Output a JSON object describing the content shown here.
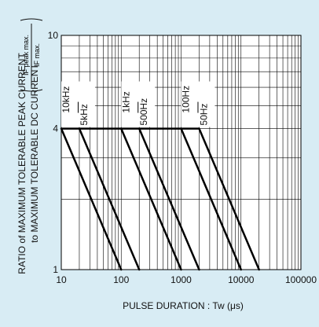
{
  "chart_data": {
    "type": "line",
    "xlabel": "PULSE DURATION : Tw (μs)",
    "ylabel_line1": "RATIO of MAXIMUM TOLERABLE PEAK CURRENT",
    "ylabel_line2": "to MAXIMUM TOLERABLE DC CURRENT",
    "ylabel_fraction": {
      "numerator": "IF peak max.",
      "denominator": "IF max."
    },
    "x_scale": "log",
    "y_scale": "log",
    "xlim": [
      10,
      100000
    ],
    "ylim": [
      1,
      10
    ],
    "x_tick_labels": [
      {
        "value": 10,
        "label": "10"
      },
      {
        "value": 100,
        "label": "100"
      },
      {
        "value": 1000,
        "label": "1000"
      },
      {
        "value": 10000,
        "label": "10000"
      },
      {
        "value": 100000,
        "label": "100000"
      }
    ],
    "y_tick_labels": [
      {
        "value": 1,
        "label": "1"
      },
      {
        "value": 4,
        "label": "4"
      },
      {
        "value": 10,
        "label": "10"
      }
    ],
    "grid": true,
    "series": [
      {
        "name": "10kHz",
        "x": [
          10,
          100
        ],
        "y": [
          4,
          1
        ]
      },
      {
        "name": "5kHz",
        "x": [
          20,
          200
        ],
        "y": [
          4,
          1
        ]
      },
      {
        "name": "1kHz",
        "x": [
          100,
          1000
        ],
        "y": [
          4,
          1
        ]
      },
      {
        "name": "500Hz",
        "x": [
          200,
          2000
        ],
        "y": [
          4,
          1
        ]
      },
      {
        "name": "100Hz",
        "x": [
          1000,
          10000
        ],
        "y": [
          4,
          1
        ]
      },
      {
        "name": "50Hz",
        "x": [
          2000,
          20000
        ],
        "y": [
          4,
          1
        ]
      }
    ],
    "plateau": {
      "y": 4,
      "x_start": 10,
      "x_end": 2000
    },
    "colors": {
      "background": "#d8ecf4",
      "plot_area": "#ffffff",
      "lines": "#000000"
    }
  }
}
